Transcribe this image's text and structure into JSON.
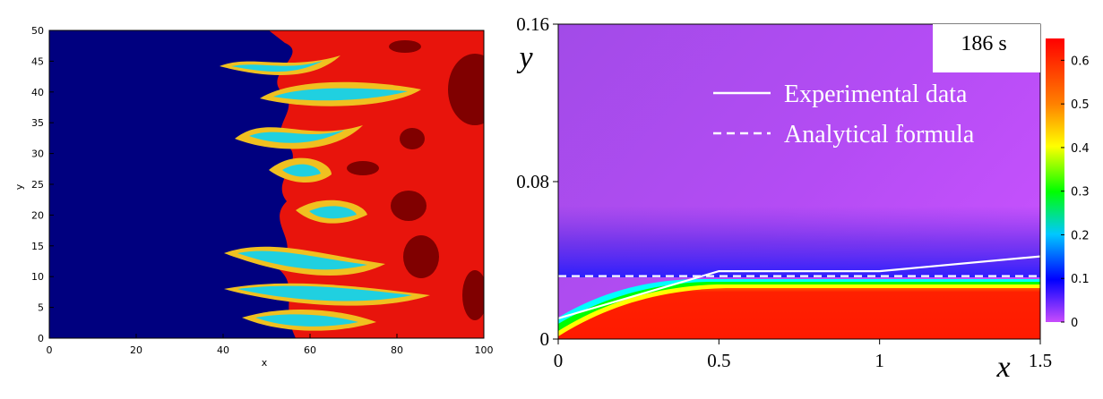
{
  "chart_data": [
    {
      "type": "heatmap",
      "xlabel": "x",
      "ylabel": "y",
      "xlim": [
        0,
        100
      ],
      "ylim": [
        0,
        50
      ],
      "x_ticks": [
        "0",
        "20",
        "40",
        "60",
        "80",
        "100"
      ],
      "y_ticks": [
        "0",
        "5",
        "10",
        "15",
        "20",
        "25",
        "30",
        "35",
        "40",
        "45",
        "50"
      ],
      "field": "fingering front (viscous fingering contour plot)",
      "colors": {
        "low": "#00007f",
        "high": "#e8140c",
        "dark": "#800000"
      }
    },
    {
      "type": "line",
      "xlabel": "x",
      "ylabel": "y",
      "xlim": [
        0,
        1.5
      ],
      "ylim": [
        0,
        0.16
      ],
      "x_ticks": [
        "0",
        "0.5",
        "1",
        "1.5"
      ],
      "y_ticks": [
        "0",
        "0.08",
        "0.16"
      ],
      "annotation": "186 s",
      "series": [
        {
          "name": "Experimental data",
          "style": "solid",
          "x": [
            0,
            0.5,
            1.0,
            1.5
          ],
          "y": [
            0.0105,
            0.0345,
            0.0345,
            0.042
          ]
        },
        {
          "name": "Analytical formula",
          "style": "dashed",
          "x": [
            0,
            1.5
          ],
          "y": [
            0.032,
            0.032
          ]
        }
      ],
      "colorbar": {
        "min": 0,
        "max": 0.65,
        "ticks": [
          "0",
          "0.1",
          "0.2",
          "0.3",
          "0.4",
          "0.5",
          "0.6"
        ],
        "colors": [
          "#c84cfc",
          "#0000ff",
          "#00c8ff",
          "#00ff00",
          "#ffff00",
          "#ff8000",
          "#ff0000"
        ]
      }
    }
  ]
}
